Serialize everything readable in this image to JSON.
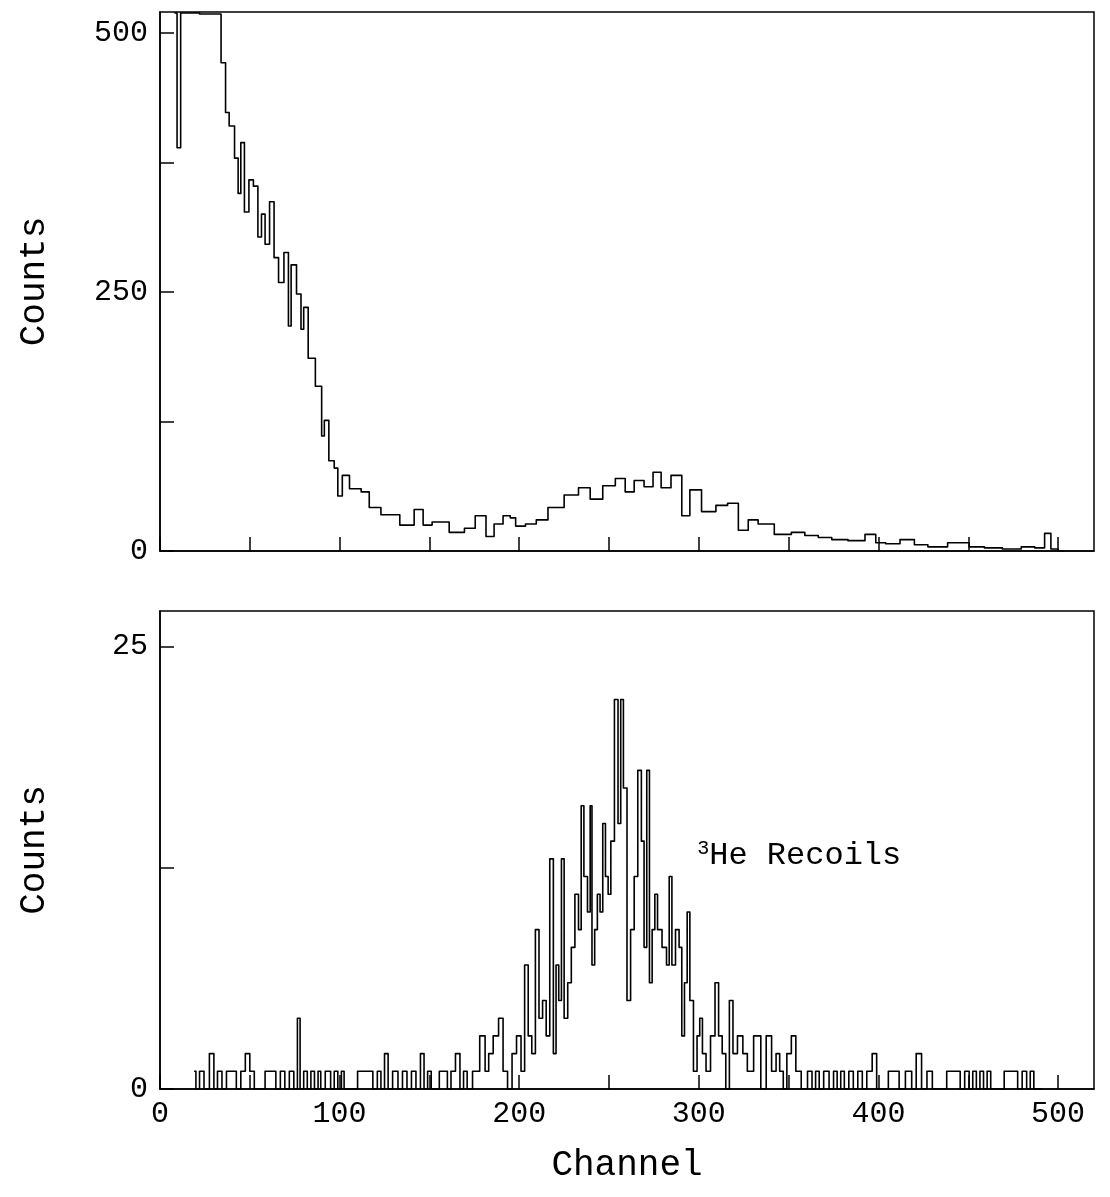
{
  "chart_data": [
    {
      "type": "step",
      "ylabel": "Counts",
      "color": "#000000",
      "xlim": [
        0,
        520
      ],
      "ylim": [
        0,
        520
      ],
      "xticks": [
        0,
        {
          "value": 50,
          "label": null
        },
        100,
        {
          "value": 150,
          "label": null
        },
        200,
        {
          "value": 250,
          "label": null
        },
        300,
        {
          "value": 350,
          "label": null
        },
        400,
        {
          "value": 450,
          "label": null
        },
        500
      ],
      "yticks": [
        0,
        {
          "value": 125,
          "label": null
        },
        250,
        {
          "value": 375,
          "label": null
        },
        500
      ],
      "tick_labels": "y",
      "x": [
        8,
        11,
        12,
        32,
        36,
        37,
        40,
        43,
        44,
        46,
        48,
        51,
        53,
        56,
        57,
        60,
        62,
        65,
        67,
        71,
        72,
        74,
        78,
        79,
        81,
        84,
        89,
        91,
        92,
        96,
        98,
        100,
        103,
        108,
        116,
        117,
        129,
        138,
        145,
        148,
        155,
        167,
        172,
        179,
        184,
        188,
        194,
        196,
        200,
        207,
        212,
        220,
        230,
        236,
        243,
        250,
        257,
        261,
        267,
        272,
        277,
        281,
        288,
        293,
        297,
        306,
        313,
        319,
        325,
        330,
        336,
        348,
        355,
        363,
        370,
        378,
        388,
        397,
        400,
        408,
        416,
        424,
        431,
        446,
        455,
        463,
        475,
        484,
        490,
        495,
        497,
        503
      ],
      "values": [
        519,
        389,
        519,
        518,
        471,
        423,
        410,
        379,
        345,
        394,
        327,
        358,
        352,
        303,
        325,
        296,
        337,
        283,
        259,
        288,
        217,
        276,
        248,
        214,
        235,
        186,
        159,
        111,
        126,
        87,
        80,
        53,
        73,
        60,
        57,
        42,
        35,
        25,
        40,
        25,
        28,
        18,
        22,
        34,
        14,
        26,
        34,
        32,
        24,
        26,
        30,
        42,
        54,
        61,
        50,
        63,
        70,
        57,
        68,
        62,
        76,
        61,
        73,
        34,
        59,
        38,
        44,
        46,
        20,
        30,
        26,
        16,
        18,
        15,
        13,
        11,
        10,
        16,
        8,
        7,
        11,
        6,
        4,
        8,
        4,
        3,
        2,
        4,
        3,
        17,
        2,
        0
      ]
    },
    {
      "type": "step",
      "xlabel": "Channel",
      "ylabel": "Counts",
      "color": "#000000",
      "xlim": [
        0,
        520
      ],
      "ylim": [
        0,
        27
      ],
      "xticks": [
        0,
        {
          "value": 50,
          "label": null
        },
        100,
        {
          "value": 150,
          "label": null
        },
        200,
        {
          "value": 250,
          "label": null
        },
        300,
        {
          "value": 350,
          "label": null
        },
        400,
        {
          "value": 450,
          "label": null
        },
        500
      ],
      "yticks": [
        0,
        {
          "value": 12.5,
          "label": null
        },
        25
      ],
      "annotations": [
        "$^{3}$He Recoils"
      ],
      "x": [
        19,
        21,
        23,
        26,
        29,
        31,
        33,
        36,
        38,
        41,
        44,
        46,
        49,
        51,
        54,
        63,
        66,
        68,
        71,
        73,
        76,
        77,
        79,
        81,
        83,
        85,
        87,
        89,
        90,
        94,
        96,
        98,
        100,
        102,
        103,
        117,
        120,
        122,
        124,
        126,
        128,
        131,
        134,
        136,
        139,
        141,
        144,
        146,
        148,
        150,
        152,
        159,
        161,
        163,
        166,
        168,
        170,
        172,
        176,
        180,
        182,
        184,
        187,
        190,
        192,
        195,
        197,
        200,
        202,
        204,
        206,
        208,
        210,
        212,
        214,
        216,
        218,
        220,
        221,
        223,
        224,
        226,
        228,
        230,
        232,
        234,
        235,
        237,
        239,
        240,
        241,
        243,
        244,
        246,
        247,
        249,
        250,
        252,
        254,
        256,
        257,
        259,
        261,
        263,
        265,
        267,
        269,
        270,
        272,
        273,
        275,
        276,
        278,
        281,
        283,
        284,
        286,
        288,
        290,
        291,
        293,
        294,
        296,
        298,
        300,
        301,
        303,
        305,
        308,
        310,
        312,
        314,
        316,
        318,
        320,
        323,
        326,
        328,
        333,
        336,
        339,
        342,
        344,
        346,
        348,
        350,
        353,
        355,
        359,
        362,
        364,
        366,
        368,
        371,
        374,
        376,
        378,
        380,
        382,
        385,
        387,
        390,
        392,
        395,
        398,
        400,
        411,
        412,
        418,
        419,
        423,
        425,
        429,
        431,
        445,
        446,
        450,
        451,
        454,
        455,
        458,
        459,
        462,
        463,
        477,
        478,
        482,
        483,
        486,
        487,
        491
      ],
      "values": [
        1,
        0,
        1,
        0,
        2,
        0,
        1,
        0,
        1,
        1,
        0,
        1,
        2,
        1,
        0,
        1,
        0,
        1,
        0,
        1,
        0,
        4,
        0,
        1,
        0,
        1,
        0,
        1,
        0,
        1,
        0,
        1,
        0,
        1,
        0,
        1,
        0,
        1,
        0,
        2,
        0,
        1,
        0,
        1,
        0,
        1,
        0,
        2,
        0,
        1,
        0,
        1,
        0,
        1,
        2,
        0,
        1,
        0,
        1,
        3,
        1,
        2,
        3,
        4,
        1,
        0,
        2,
        3,
        1,
        7,
        3,
        2,
        9,
        4,
        5,
        3,
        13,
        2,
        7,
        5,
        13,
        4,
        6,
        8,
        11,
        9,
        16,
        12,
        10,
        16,
        7,
        9,
        11,
        10,
        15,
        12,
        11,
        14,
        22,
        15,
        22,
        17,
        5,
        9,
        12,
        18,
        14,
        8,
        18,
        6,
        9,
        11,
        9,
        8,
        7,
        12,
        7,
        9,
        8,
        3,
        6,
        10,
        5,
        1,
        3,
        4,
        2,
        1,
        3,
        6,
        3,
        2,
        0,
        5,
        2,
        3,
        2,
        1,
        3,
        0,
        3,
        1,
        2,
        1,
        0,
        2,
        3,
        1,
        0,
        1,
        0,
        1,
        0,
        1,
        0,
        1,
        0,
        1,
        0,
        1,
        0,
        1,
        0,
        1,
        2,
        0,
        1,
        0,
        1,
        0,
        2,
        0,
        1,
        0,
        1,
        0,
        1,
        0,
        1,
        0,
        1,
        0,
        1,
        0,
        1,
        0,
        1,
        0,
        1,
        0,
        0
      ]
    }
  ]
}
